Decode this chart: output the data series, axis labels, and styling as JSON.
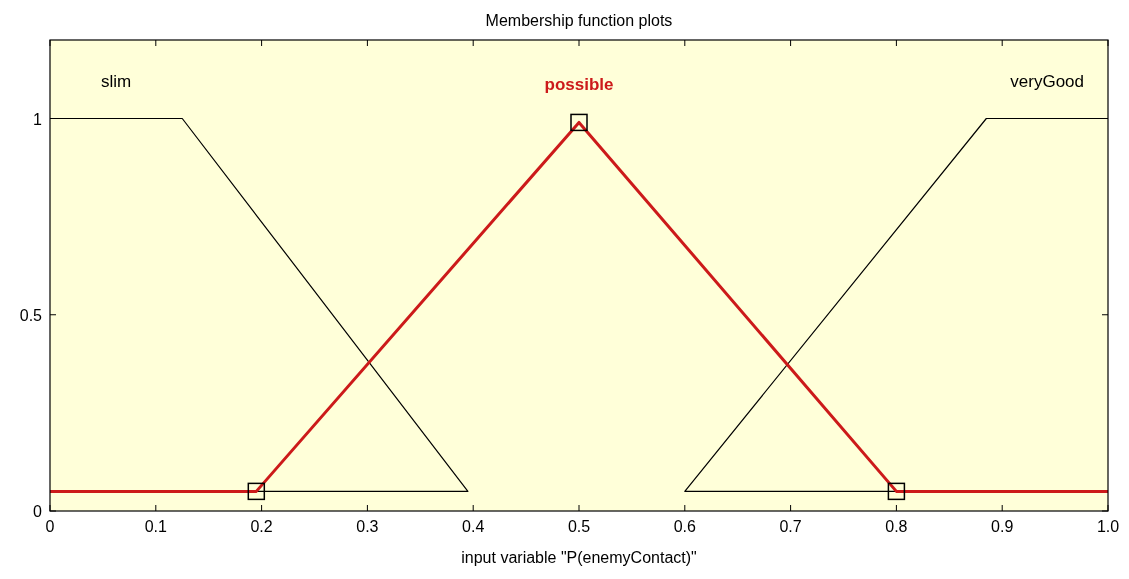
{
  "chart_data": {
    "type": "line",
    "title": "Membership function plots",
    "xlabel": "input variable \"P(enemyContact)\"",
    "xlim": [
      0,
      1
    ],
    "ylim": [
      0,
      1.2
    ],
    "xticks": [
      0,
      0.1,
      0.2,
      0.3,
      0.4,
      0.5,
      0.6,
      0.7,
      0.8,
      0.9,
      {
        "value": 1,
        "label": "1.0"
      }
    ],
    "yticks": [
      0,
      0.5,
      1
    ],
    "grid": false,
    "line_style": "solid",
    "series": [
      {
        "name": "slim",
        "color": "#000000",
        "x": [
          0,
          0.125,
          0.395,
          0
        ],
        "values": [
          1,
          1,
          0.05,
          0.05
        ]
      },
      {
        "name": "veryGood",
        "color": "#000000",
        "x": [
          1,
          0.885,
          0.6,
          1
        ],
        "values": [
          1,
          1,
          0.05,
          0.05
        ]
      },
      {
        "name": "possible",
        "color": "#cc1a1a",
        "x": [
          0,
          0.195,
          0.5,
          0.8,
          1
        ],
        "values": [
          0.05,
          0.05,
          0.99,
          0.05,
          0.05
        ]
      },
      {
        "type": "scatter",
        "marker": "square",
        "color": "#000000",
        "x": [
          0.195,
          0.5,
          0.8
        ],
        "values": [
          0.05,
          0.99,
          0.05
        ]
      }
    ]
  }
}
